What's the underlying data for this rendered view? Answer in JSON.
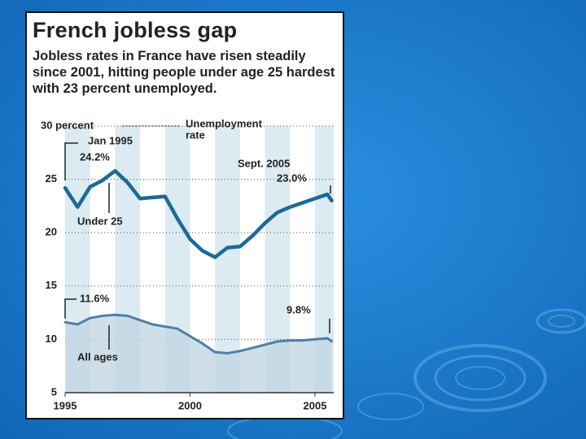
{
  "chart_data": {
    "type": "line",
    "title": "French jobless gap",
    "subtitle": "Jobless rates in France have risen steadily since 2001, hitting people under age 25 hardest with 23 percent unemployed.",
    "y_label_lines": [
      "Unemployment",
      "rate"
    ],
    "annotations": [
      "Jan 1995",
      "24.2%",
      "Sept. 2005",
      "23.0%",
      "Under 25",
      "11.6%",
      "9.8%",
      "All ages"
    ],
    "x": [
      1995,
      1995.5,
      1996,
      1996.5,
      1997,
      1997.5,
      1998,
      1998.5,
      1999,
      1999.5,
      2000,
      2000.5,
      2001,
      2001.5,
      2002,
      2002.5,
      2003,
      2003.5,
      2004,
      2004.5,
      2005,
      2005.5,
      2005.67
    ],
    "series": [
      {
        "name": "Under 25",
        "color": "#1b6a98",
        "values": [
          24.2,
          22.4,
          24.3,
          24.9,
          25.8,
          24.7,
          23.2,
          23.3,
          23.4,
          21.3,
          19.4,
          18.3,
          17.7,
          18.6,
          18.7,
          19.7,
          20.9,
          21.9,
          22.4,
          22.8,
          23.2,
          23.6,
          23.0
        ]
      },
      {
        "name": "All ages",
        "color": "#4f7fa3",
        "values": [
          11.6,
          11.4,
          12.0,
          12.2,
          12.3,
          12.2,
          11.8,
          11.4,
          11.2,
          11.0,
          10.3,
          9.6,
          8.8,
          8.7,
          8.9,
          9.2,
          9.5,
          9.8,
          9.9,
          9.9,
          10.0,
          10.1,
          9.8
        ]
      }
    ],
    "xlim": [
      1995,
      2005.75
    ],
    "xticks": [
      1995,
      2000,
      2005
    ],
    "ylim": [
      5,
      30
    ],
    "yticks": [
      5,
      10,
      15,
      20,
      25,
      {
        "value": 30,
        "label": "30 percent"
      }
    ],
    "grid": true
  }
}
